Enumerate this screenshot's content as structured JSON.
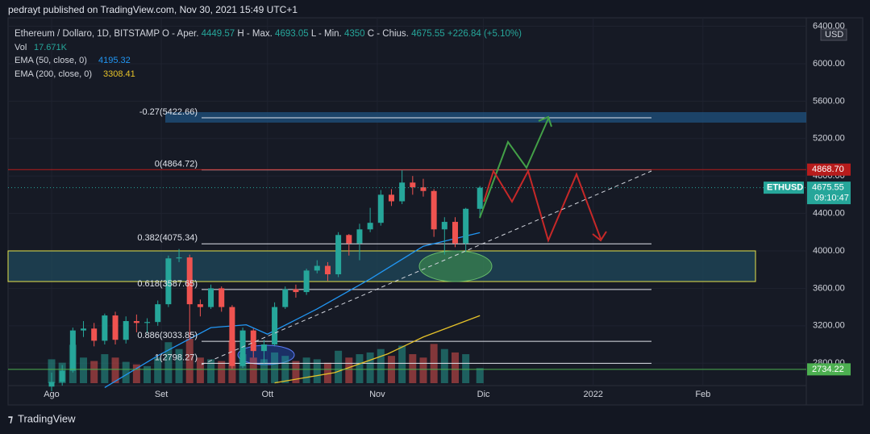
{
  "header": {
    "published": "pedrayt published on TradingView.com, Nov 30, 2021 15:49 UTC+1"
  },
  "footer": {
    "brand": "TradingView"
  },
  "chart_data": {
    "type": "candlestick",
    "legend": {
      "symbol": "Ethereum / Dollaro, 1D, BITSTAMP",
      "open_label": "O - Aper.",
      "high_label": "H - Max.",
      "low_label": "L - Min.",
      "close_label": "C - Chius.",
      "change": "+226.84 (+5.10%)",
      "volume_label": "Vol",
      "volume_value": "17.671K",
      "ema50_label": "EMA (50, close, 0)",
      "ema200_label": "EMA (200, close, 0)"
    },
    "currency": "USD",
    "xlim": [
      -12.3,
      213.2
    ],
    "xticks": [
      {
        "value": 0,
        "label": "Ago"
      },
      {
        "value": 31,
        "label": "Set"
      },
      {
        "value": 61,
        "label": "Ott"
      },
      {
        "value": 92,
        "label": "Nov"
      },
      {
        "value": 122,
        "label": "Dic"
      },
      {
        "value": 153,
        "label": "2022"
      },
      {
        "value": 184,
        "label": "Feb"
      }
    ],
    "ylim": [
      2371,
      6491
    ],
    "yticks": [
      {
        "value": 2800,
        "label": "2800.00"
      },
      {
        "value": 3200,
        "label": "3200.00"
      },
      {
        "value": 3600,
        "label": "3600.00"
      },
      {
        "value": 4000,
        "label": "4000.00"
      },
      {
        "value": 4400,
        "label": "4400.00"
      },
      {
        "value": 4800,
        "label": "4800.00"
      },
      {
        "value": 5200,
        "label": "5200.00"
      },
      {
        "value": 5600,
        "label": "5600.00"
      },
      {
        "value": 6000,
        "label": "6000.00"
      },
      {
        "value": 6400,
        "label": "6400.00"
      }
    ],
    "up_color": "#26a69a",
    "down_color": "#ef5350",
    "candles": [
      {
        "x": 0,
        "o": 2550,
        "h": 2700,
        "l": 2500,
        "c": 2600
      },
      {
        "x": 3,
        "o": 2600,
        "h": 2780,
        "l": 2560,
        "c": 2720
      },
      {
        "x": 6,
        "o": 2720,
        "h": 3180,
        "l": 2700,
        "c": 3150
      },
      {
        "x": 9,
        "o": 3150,
        "h": 3250,
        "l": 3080,
        "c": 3170
      },
      {
        "x": 12,
        "o": 3170,
        "h": 3230,
        "l": 2980,
        "c": 3040
      },
      {
        "x": 15,
        "o": 3040,
        "h": 3330,
        "l": 3000,
        "c": 3310
      },
      {
        "x": 18,
        "o": 3310,
        "h": 3350,
        "l": 3000,
        "c": 3050
      },
      {
        "x": 21,
        "o": 3050,
        "h": 3300,
        "l": 3010,
        "c": 3250
      },
      {
        "x": 24,
        "o": 3250,
        "h": 3320,
        "l": 3130,
        "c": 3230
      },
      {
        "x": 27,
        "o": 3230,
        "h": 3280,
        "l": 3120,
        "c": 3240
      },
      {
        "x": 30,
        "o": 3240,
        "h": 3470,
        "l": 3200,
        "c": 3430
      },
      {
        "x": 33,
        "o": 3430,
        "h": 3950,
        "l": 3400,
        "c": 3920
      },
      {
        "x": 36,
        "o": 3920,
        "h": 4020,
        "l": 3880,
        "c": 3930
      },
      {
        "x": 39,
        "o": 3930,
        "h": 3960,
        "l": 3050,
        "c": 3430
      },
      {
        "x": 42,
        "o": 3430,
        "h": 3480,
        "l": 3300,
        "c": 3400
      },
      {
        "x": 45,
        "o": 3400,
        "h": 3640,
        "l": 3380,
        "c": 3600
      },
      {
        "x": 48,
        "o": 3600,
        "h": 3620,
        "l": 3350,
        "c": 3400
      },
      {
        "x": 51,
        "o": 3400,
        "h": 3420,
        "l": 2740,
        "c": 2770
      },
      {
        "x": 54,
        "o": 2770,
        "h": 3180,
        "l": 2750,
        "c": 3150
      },
      {
        "x": 57,
        "o": 3150,
        "h": 3170,
        "l": 2860,
        "c": 2930
      },
      {
        "x": 60,
        "o": 2930,
        "h": 3050,
        "l": 2800,
        "c": 3000
      },
      {
        "x": 63,
        "o": 3000,
        "h": 3450,
        "l": 2980,
        "c": 3400
      },
      {
        "x": 66,
        "o": 3400,
        "h": 3620,
        "l": 3380,
        "c": 3590
      },
      {
        "x": 69,
        "o": 3590,
        "h": 3640,
        "l": 3500,
        "c": 3560
      },
      {
        "x": 72,
        "o": 3560,
        "h": 3810,
        "l": 3530,
        "c": 3790
      },
      {
        "x": 75,
        "o": 3790,
        "h": 3900,
        "l": 3760,
        "c": 3840
      },
      {
        "x": 78,
        "o": 3840,
        "h": 3880,
        "l": 3680,
        "c": 3750
      },
      {
        "x": 81,
        "o": 3750,
        "h": 4200,
        "l": 3720,
        "c": 4170
      },
      {
        "x": 84,
        "o": 4170,
        "h": 4180,
        "l": 3950,
        "c": 4080
      },
      {
        "x": 87,
        "o": 4080,
        "h": 4290,
        "l": 3900,
        "c": 4230
      },
      {
        "x": 90,
        "o": 4230,
        "h": 4460,
        "l": 4200,
        "c": 4300
      },
      {
        "x": 93,
        "o": 4300,
        "h": 4650,
        "l": 4270,
        "c": 4600
      },
      {
        "x": 96,
        "o": 4600,
        "h": 4660,
        "l": 4480,
        "c": 4530
      },
      {
        "x": 99,
        "o": 4530,
        "h": 4860,
        "l": 4500,
        "c": 4730
      },
      {
        "x": 102,
        "o": 4730,
        "h": 4800,
        "l": 4600,
        "c": 4680
      },
      {
        "x": 105,
        "o": 4680,
        "h": 4770,
        "l": 4580,
        "c": 4640
      },
      {
        "x": 108,
        "o": 4640,
        "h": 4660,
        "l": 4150,
        "c": 4230
      },
      {
        "x": 111,
        "o": 4230,
        "h": 4360,
        "l": 3960,
        "c": 4310
      },
      {
        "x": 114,
        "o": 4310,
        "h": 4360,
        "l": 4040,
        "c": 4080
      },
      {
        "x": 117,
        "o": 4080,
        "h": 4460,
        "l": 3990,
        "c": 4450
      },
      {
        "x": 121,
        "o": 4449.57,
        "h": 4693.05,
        "l": 4350,
        "c": 4675.55
      }
    ],
    "volumes": [
      28,
      24,
      45,
      30,
      26,
      34,
      30,
      25,
      22,
      20,
      30,
      48,
      40,
      52,
      30,
      28,
      26,
      50,
      34,
      30,
      28,
      36,
      32,
      26,
      30,
      28,
      24,
      38,
      30,
      34,
      36,
      40,
      32,
      44,
      34,
      30,
      46,
      40,
      36,
      34,
      17.671
    ],
    "ema": [
      {
        "name": "EMA50",
        "color": "#2196f3",
        "x": [
          15,
          30,
          45,
          55,
          61,
          75,
          90,
          105,
          121
        ],
        "values": [
          2540,
          2880,
          3180,
          3210,
          3110,
          3380,
          3700,
          4050,
          4195.32
        ]
      },
      {
        "name": "EMA200",
        "color": "#e6c229",
        "x": [
          63,
          80,
          95,
          105,
          121
        ],
        "values": [
          2590,
          2700,
          2900,
          3080,
          3308.41
        ]
      }
    ],
    "fib_levels": [
      {
        "label": "-0.27(5422.66)",
        "value": 5422.66
      },
      {
        "label": "0(4864.72)",
        "value": 4864.72
      },
      {
        "label": "0.382(4075.34)",
        "value": 4075.34
      },
      {
        "label": "0.618(3587.65)",
        "value": 3587.65
      },
      {
        "label": "0.886(3033.85)",
        "value": 3033.85
      },
      {
        "label": "1(2798.27)",
        "value": 2798.27
      }
    ],
    "price_tags": [
      {
        "label": "4868.70",
        "value": 4868.7,
        "color": "#b71c1c"
      },
      {
        "label": "4675.55",
        "value": 4675.55,
        "color": "#26a69a",
        "sub": "09:10:47",
        "tag": "ETHUSD"
      },
      {
        "label": "2734.22",
        "value": 2734.22,
        "color": "#4caf50"
      }
    ]
  }
}
